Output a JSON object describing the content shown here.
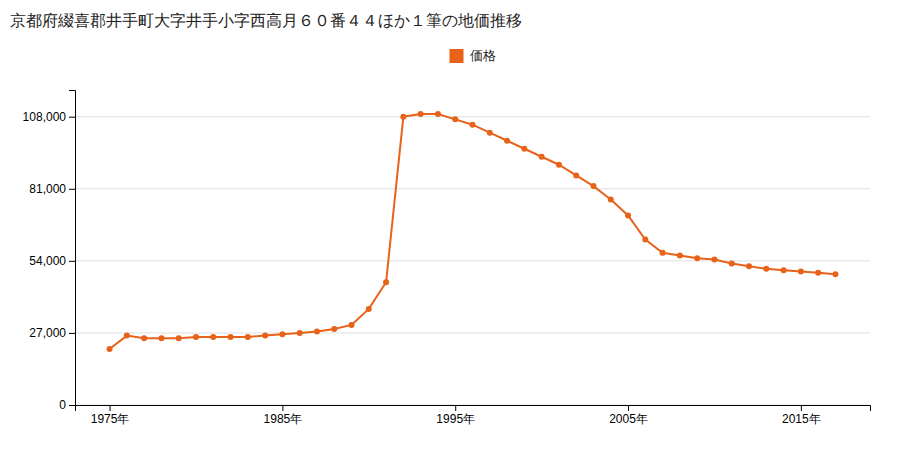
{
  "chart_data": {
    "type": "line",
    "title": "京都府綴喜郡井手町大字井手小字西高月６０番４４ほか１筆の地価推移",
    "x": [
      1975,
      1976,
      1977,
      1978,
      1979,
      1980,
      1981,
      1982,
      1983,
      1984,
      1985,
      1986,
      1987,
      1988,
      1989,
      1990,
      1991,
      1992,
      1993,
      1994,
      1995,
      1996,
      1997,
      1998,
      1999,
      2000,
      2001,
      2002,
      2003,
      2004,
      2005,
      2006,
      2007,
      2008,
      2009,
      2010,
      2011,
      2012,
      2013,
      2014,
      2015,
      2016,
      2017
    ],
    "series": [
      {
        "name": "価格",
        "color": "#e8621a",
        "marker": "circle",
        "values": [
          21000,
          26000,
          25000,
          25000,
          25000,
          25500,
          25500,
          25500,
          25500,
          26000,
          26500,
          27000,
          27500,
          28500,
          30000,
          36000,
          46000,
          108000,
          109000,
          109000,
          107000,
          105000,
          102000,
          99000,
          96000,
          93000,
          90000,
          86000,
          82000,
          77000,
          71000,
          62000,
          57000,
          56000,
          55000,
          54500,
          53000,
          52000,
          51000,
          50500,
          50000,
          49500,
          49000
        ]
      }
    ],
    "xlim": [
      1973,
      2019
    ],
    "xticks": [
      {
        "value": 1975,
        "label": "1975年"
      },
      {
        "value": 1985,
        "label": "1985年"
      },
      {
        "value": 1995,
        "label": "1995年"
      },
      {
        "value": 2005,
        "label": "2005年"
      },
      {
        "value": 2015,
        "label": "2015年"
      }
    ],
    "ylim": [
      0,
      118000
    ],
    "yticks": [
      0,
      {
        "value": 27000,
        "label": "27,000"
      },
      {
        "value": 54000,
        "label": "54,000"
      },
      {
        "value": 81000,
        "label": "81,000"
      },
      {
        "value": 108000,
        "label": "108,000"
      }
    ],
    "grid": true,
    "legend": "top"
  }
}
